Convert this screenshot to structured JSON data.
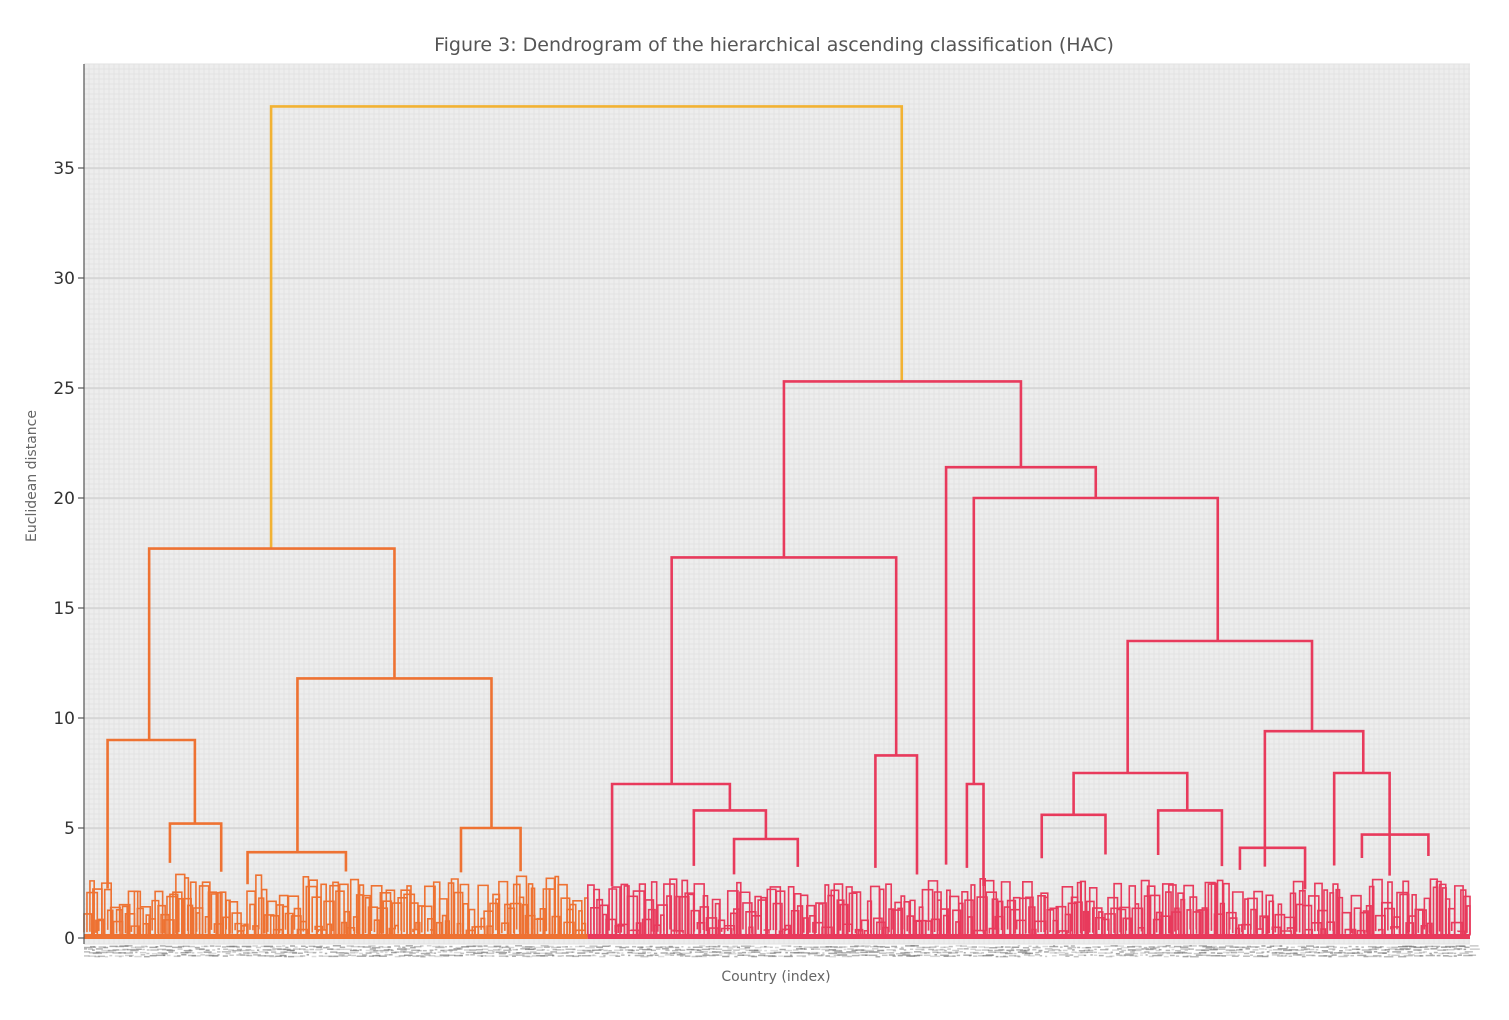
{
  "chart_data": {
    "type": "dendrogram",
    "title": "Figure 3: Dendrogram of the hierarchical ascending classification (HAC)",
    "xlabel": "Country (index)",
    "ylabel": "Euclidean distance",
    "ylim": [
      0,
      39.5
    ],
    "yticks": [
      0,
      5,
      10,
      15,
      20,
      25,
      30,
      35
    ],
    "grid": true,
    "n_leaves": 1000,
    "colors": {
      "root": "#f2b233",
      "cluster_left": "#ee7232",
      "cluster_right": "#e83a5c",
      "grid": "#d9d9d9",
      "background": "#ededed"
    },
    "merges": [
      {
        "id": "root",
        "left": 0.135,
        "right": 0.59,
        "height": 37.8,
        "color": "root"
      },
      {
        "id": "L",
        "left": 0.047,
        "right": 0.224,
        "height": 17.7,
        "color": "cluster_left"
      },
      {
        "id": "L1",
        "left": 0.017,
        "right": 0.08,
        "height": 9.0,
        "color": "cluster_left"
      },
      {
        "id": "L1b",
        "left": 0.062,
        "right": 0.099,
        "height": 5.2,
        "color": "cluster_left"
      },
      {
        "id": "L2",
        "left": 0.154,
        "right": 0.294,
        "height": 11.8,
        "color": "cluster_left"
      },
      {
        "id": "L2a",
        "left": 0.118,
        "right": 0.189,
        "height": 3.9,
        "color": "cluster_left"
      },
      {
        "id": "L2b",
        "left": 0.272,
        "right": 0.315,
        "height": 5.0,
        "color": "cluster_left"
      },
      {
        "id": "R",
        "left": 0.505,
        "right": 0.676,
        "height": 25.3,
        "color": "cluster_right"
      },
      {
        "id": "R1",
        "left": 0.424,
        "right": 0.586,
        "height": 17.3,
        "color": "cluster_right"
      },
      {
        "id": "R1a",
        "left": 0.381,
        "right": 0.466,
        "height": 7.0,
        "color": "cluster_right"
      },
      {
        "id": "R1a2",
        "left": 0.44,
        "right": 0.492,
        "height": 5.8,
        "color": "cluster_right"
      },
      {
        "id": "R1a2b",
        "left": 0.469,
        "right": 0.515,
        "height": 4.5,
        "color": "cluster_right"
      },
      {
        "id": "R1b",
        "left": 0.571,
        "right": 0.601,
        "height": 8.3,
        "color": "cluster_right"
      },
      {
        "id": "R2",
        "left": 0.622,
        "right": 0.73,
        "height": 21.4,
        "color": "cluster_right"
      },
      {
        "id": "R2a",
        "left": 0.642,
        "right": 0.818,
        "height": 20.0,
        "color": "cluster_right"
      },
      {
        "id": "R2a1",
        "left": 0.637,
        "right": 0.649,
        "height": 7.0,
        "color": "cluster_right"
      },
      {
        "id": "R2b",
        "left": 0.753,
        "right": 0.886,
        "height": 13.5,
        "color": "cluster_right"
      },
      {
        "id": "R2b1",
        "left": 0.714,
        "right": 0.796,
        "height": 7.5,
        "color": "cluster_right"
      },
      {
        "id": "R2b1a",
        "left": 0.691,
        "right": 0.737,
        "height": 5.6,
        "color": "cluster_right"
      },
      {
        "id": "R2b1b",
        "left": 0.775,
        "right": 0.821,
        "height": 5.8,
        "color": "cluster_right"
      },
      {
        "id": "R2b2",
        "left": 0.852,
        "right": 0.923,
        "height": 9.4,
        "color": "cluster_right"
      },
      {
        "id": "R2b2a",
        "left": 0.834,
        "right": 0.881,
        "height": 4.1,
        "color": "cluster_right"
      },
      {
        "id": "R2b2b",
        "left": 0.902,
        "right": 0.942,
        "height": 7.5,
        "color": "cluster_right"
      },
      {
        "id": "R2b2c",
        "left": 0.922,
        "right": 0.97,
        "height": 4.7,
        "color": "cluster_right"
      }
    ]
  }
}
